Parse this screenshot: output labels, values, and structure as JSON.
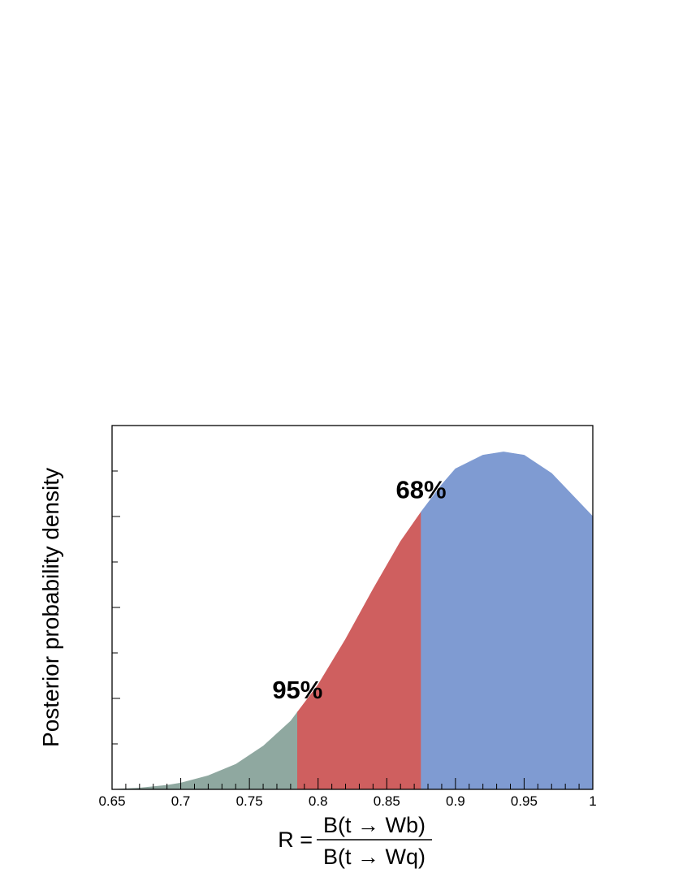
{
  "chart_data": {
    "type": "area",
    "title": "",
    "ylabel": "Posterior probability density",
    "xlabel": {
      "lhs": "R =",
      "numerator": "B(t → Wb)",
      "denominator": "B(t → Wq)"
    },
    "xlim": [
      0.65,
      1.0
    ],
    "ylim": [
      0,
      8
    ],
    "x_ticks": [
      "0.65",
      "0.7",
      "0.75",
      "0.8",
      "0.85",
      "0.9",
      "0.95",
      "1"
    ],
    "x_tick_values": [
      0.65,
      0.7,
      0.75,
      0.8,
      0.85,
      0.9,
      0.95,
      1.0
    ],
    "y_ticks_labeled": false,
    "y_tick_values": [
      1,
      2,
      3,
      4,
      5,
      6,
      7
    ],
    "grid": false,
    "curve": {
      "x": [
        0.65,
        0.67,
        0.69,
        0.7,
        0.72,
        0.74,
        0.76,
        0.78,
        0.785,
        0.8,
        0.82,
        0.84,
        0.86,
        0.875,
        0.89,
        0.9,
        0.92,
        0.935,
        0.95,
        0.97,
        1.0
      ],
      "y": [
        0.0,
        0.03,
        0.09,
        0.14,
        0.3,
        0.55,
        0.95,
        1.5,
        1.7,
        2.3,
        3.3,
        4.4,
        5.45,
        6.1,
        6.7,
        7.05,
        7.35,
        7.42,
        7.35,
        6.95,
        6.0
      ]
    },
    "regions": [
      {
        "name": "95%",
        "from": 0.65,
        "to": 0.785,
        "color": "#8fa8a0"
      },
      {
        "name": "68%",
        "from": 0.785,
        "to": 0.875,
        "color": "#cf5f5f"
      },
      {
        "name": "",
        "from": 0.875,
        "to": 1.0,
        "color": "#7f9bd2"
      }
    ],
    "annotations": [
      {
        "text": "95%",
        "x": 0.785
      },
      {
        "text": "68%",
        "x": 0.875
      }
    ]
  }
}
